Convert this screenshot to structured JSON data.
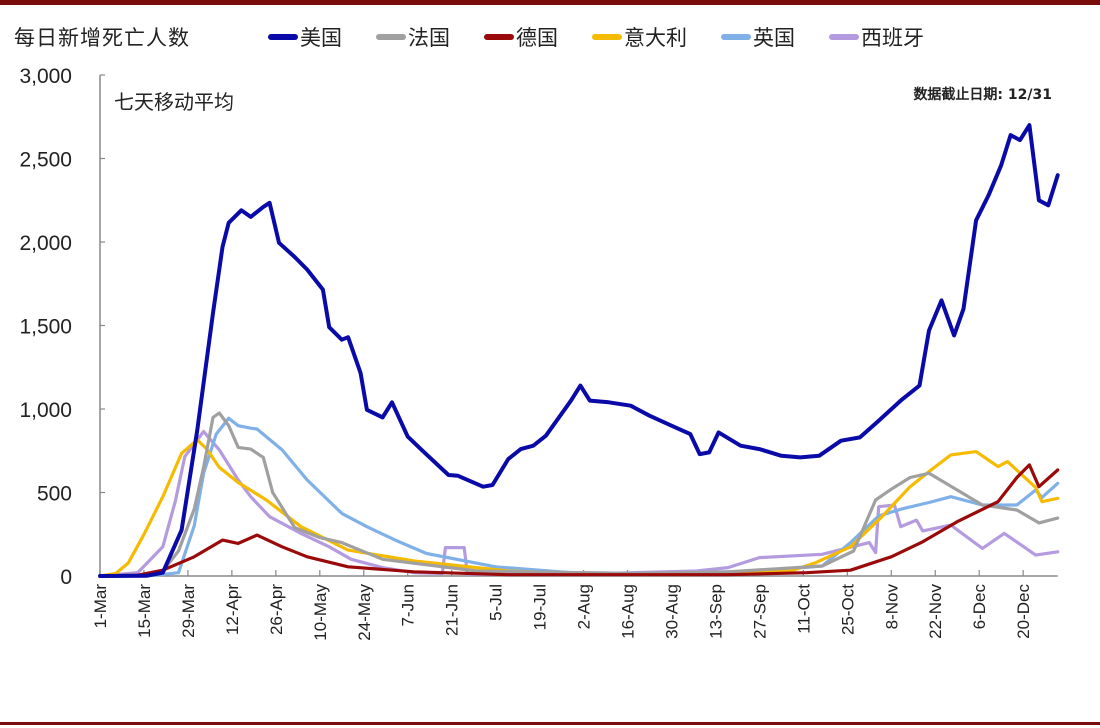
{
  "chart_data": {
    "type": "line",
    "title": "每日新增死亡人数",
    "subtitle": "七天移动平均",
    "annotation": "数据截止日期: 12/31",
    "xlabel": "",
    "ylabel": "",
    "x_unit": "days since 1-Mar",
    "ylim": [
      0,
      3000
    ],
    "yticks": [
      "0",
      "500",
      "1,000",
      "1,500",
      "2,000",
      "2,500",
      "3,000"
    ],
    "ytick_values": [
      0,
      500,
      1000,
      1500,
      2000,
      2500,
      3000
    ],
    "xticks": [
      "1-Mar",
      "15-Mar",
      "29-Mar",
      "12-Apr",
      "26-Apr",
      "10-May",
      "24-May",
      "7-Jun",
      "21-Jun",
      "5-Jul",
      "19-Jul",
      "2-Aug",
      "16-Aug",
      "30-Aug",
      "13-Sep",
      "27-Sep",
      "11-Oct",
      "25-Oct",
      "8-Nov",
      "22-Nov",
      "6-Dec",
      "20-Dec"
    ],
    "xtick_step_days": 14,
    "xlim": [
      0,
      305
    ],
    "legend_position": "top",
    "series": [
      {
        "name": "美国",
        "color": "#0a0aa8",
        "points": [
          [
            0,
            0
          ],
          [
            15,
            2
          ],
          [
            20,
            20
          ],
          [
            26,
            275
          ],
          [
            31,
            875
          ],
          [
            36,
            1575
          ],
          [
            39,
            1970
          ],
          [
            41,
            2115
          ],
          [
            45,
            2190
          ],
          [
            48,
            2150
          ],
          [
            52,
            2210
          ],
          [
            54,
            2235
          ],
          [
            57,
            1995
          ],
          [
            62,
            1910
          ],
          [
            66,
            1835
          ],
          [
            71,
            1715
          ],
          [
            73,
            1490
          ],
          [
            77,
            1415
          ],
          [
            79,
            1430
          ],
          [
            83,
            1215
          ],
          [
            85,
            995
          ],
          [
            90,
            950
          ],
          [
            93,
            1040
          ],
          [
            98,
            835
          ],
          [
            103,
            745
          ],
          [
            111,
            605
          ],
          [
            114,
            600
          ],
          [
            122,
            535
          ],
          [
            125,
            545
          ],
          [
            130,
            700
          ],
          [
            134,
            760
          ],
          [
            138,
            780
          ],
          [
            142,
            840
          ],
          [
            150,
            1050
          ],
          [
            153,
            1140
          ],
          [
            156,
            1050
          ],
          [
            162,
            1040
          ],
          [
            169,
            1020
          ],
          [
            175,
            960
          ],
          [
            182,
            900
          ],
          [
            188,
            850
          ],
          [
            191,
            730
          ],
          [
            194,
            740
          ],
          [
            197,
            860
          ],
          [
            204,
            780
          ],
          [
            210,
            760
          ],
          [
            217,
            720
          ],
          [
            223,
            710
          ],
          [
            229,
            720
          ],
          [
            236,
            810
          ],
          [
            242,
            830
          ],
          [
            248,
            930
          ],
          [
            255,
            1050
          ],
          [
            261,
            1140
          ],
          [
            264,
            1470
          ],
          [
            268,
            1650
          ],
          [
            272,
            1440
          ],
          [
            275,
            1600
          ],
          [
            279,
            2130
          ],
          [
            283,
            2280
          ],
          [
            287,
            2460
          ],
          [
            290,
            2640
          ],
          [
            293,
            2610
          ],
          [
            296,
            2700
          ],
          [
            299,
            2250
          ],
          [
            302,
            2220
          ],
          [
            305,
            2400
          ]
        ]
      },
      {
        "name": "法国",
        "color": "#a0a0a0",
        "points": [
          [
            0,
            0
          ],
          [
            15,
            5
          ],
          [
            20,
            30
          ],
          [
            25,
            150
          ],
          [
            30,
            400
          ],
          [
            33,
            650
          ],
          [
            36,
            950
          ],
          [
            38,
            976
          ],
          [
            41,
            900
          ],
          [
            44,
            770
          ],
          [
            48,
            760
          ],
          [
            52,
            710
          ],
          [
            55,
            500
          ],
          [
            62,
            290
          ],
          [
            70,
            230
          ],
          [
            77,
            200
          ],
          [
            90,
            100
          ],
          [
            120,
            30
          ],
          [
            170,
            15
          ],
          [
            200,
            25
          ],
          [
            230,
            60
          ],
          [
            240,
            150
          ],
          [
            247,
            455
          ],
          [
            252,
            520
          ],
          [
            258,
            590
          ],
          [
            264,
            615
          ],
          [
            273,
            515
          ],
          [
            281,
            425
          ],
          [
            292,
            395
          ],
          [
            299,
            318
          ],
          [
            305,
            347
          ]
        ]
      },
      {
        "name": "德国",
        "color": "#9b0a0a",
        "points": [
          [
            0,
            0
          ],
          [
            12,
            5
          ],
          [
            20,
            35
          ],
          [
            30,
            115
          ],
          [
            39,
            215
          ],
          [
            44,
            195
          ],
          [
            50,
            245
          ],
          [
            58,
            175
          ],
          [
            66,
            115
          ],
          [
            79,
            55
          ],
          [
            100,
            25
          ],
          [
            130,
            8
          ],
          [
            200,
            8
          ],
          [
            225,
            20
          ],
          [
            239,
            35
          ],
          [
            252,
            115
          ],
          [
            262,
            205
          ],
          [
            273,
            325
          ],
          [
            286,
            445
          ],
          [
            292,
            590
          ],
          [
            296,
            665
          ],
          [
            299,
            535
          ],
          [
            305,
            635
          ]
        ]
      },
      {
        "name": "意大利",
        "color": "#f5bb00",
        "points": [
          [
            0,
            0
          ],
          [
            5,
            15
          ],
          [
            9,
            78
          ],
          [
            14,
            250
          ],
          [
            20,
            475
          ],
          [
            26,
            735
          ],
          [
            31,
            815
          ],
          [
            34,
            760
          ],
          [
            38,
            650
          ],
          [
            44,
            560
          ],
          [
            53,
            455
          ],
          [
            64,
            295
          ],
          [
            79,
            155
          ],
          [
            100,
            90
          ],
          [
            130,
            30
          ],
          [
            160,
            10
          ],
          [
            200,
            15
          ],
          [
            220,
            30
          ],
          [
            228,
            80
          ],
          [
            239,
            175
          ],
          [
            249,
            355
          ],
          [
            258,
            535
          ],
          [
            265,
            640
          ],
          [
            271,
            725
          ],
          [
            279,
            745
          ],
          [
            286,
            655
          ],
          [
            289,
            685
          ],
          [
            298,
            530
          ],
          [
            300,
            445
          ],
          [
            305,
            465
          ]
        ]
      },
      {
        "name": "英国",
        "color": "#7fb0e8",
        "points": [
          [
            0,
            0
          ],
          [
            18,
            5
          ],
          [
            25,
            20
          ],
          [
            30,
            300
          ],
          [
            33,
            615
          ],
          [
            37,
            850
          ],
          [
            41,
            945
          ],
          [
            44,
            900
          ],
          [
            48,
            885
          ],
          [
            50,
            880
          ],
          [
            58,
            755
          ],
          [
            66,
            575
          ],
          [
            77,
            375
          ],
          [
            85,
            295
          ],
          [
            94,
            215
          ],
          [
            104,
            135
          ],
          [
            126,
            55
          ],
          [
            150,
            20
          ],
          [
            180,
            15
          ],
          [
            210,
            30
          ],
          [
            230,
            60
          ],
          [
            239,
            200
          ],
          [
            248,
            360
          ],
          [
            256,
            405
          ],
          [
            264,
            440
          ],
          [
            271,
            475
          ],
          [
            281,
            425
          ],
          [
            292,
            425
          ],
          [
            298,
            515
          ],
          [
            300,
            470
          ],
          [
            305,
            555
          ]
        ]
      },
      {
        "name": "西班牙",
        "color": "#b49be0",
        "points": [
          [
            0,
            0
          ],
          [
            12,
            20
          ],
          [
            20,
            175
          ],
          [
            24,
            450
          ],
          [
            27,
            715
          ],
          [
            33,
            865
          ],
          [
            38,
            755
          ],
          [
            44,
            575
          ],
          [
            48,
            475
          ],
          [
            54,
            355
          ],
          [
            64,
            255
          ],
          [
            73,
            175
          ],
          [
            80,
            100
          ],
          [
            90,
            50
          ],
          [
            100,
            20
          ],
          [
            109,
            15
          ],
          [
            110,
            170
          ],
          [
            116,
            170
          ],
          [
            117,
            10
          ],
          [
            150,
            10
          ],
          [
            190,
            30
          ],
          [
            200,
            50
          ],
          [
            210,
            110
          ],
          [
            230,
            130
          ],
          [
            245,
            200
          ],
          [
            247,
            140
          ],
          [
            248,
            415
          ],
          [
            253,
            425
          ],
          [
            255,
            295
          ],
          [
            260,
            335
          ],
          [
            262,
            270
          ],
          [
            271,
            305
          ],
          [
            281,
            165
          ],
          [
            288,
            255
          ],
          [
            298,
            125
          ],
          [
            305,
            145
          ]
        ]
      }
    ]
  }
}
